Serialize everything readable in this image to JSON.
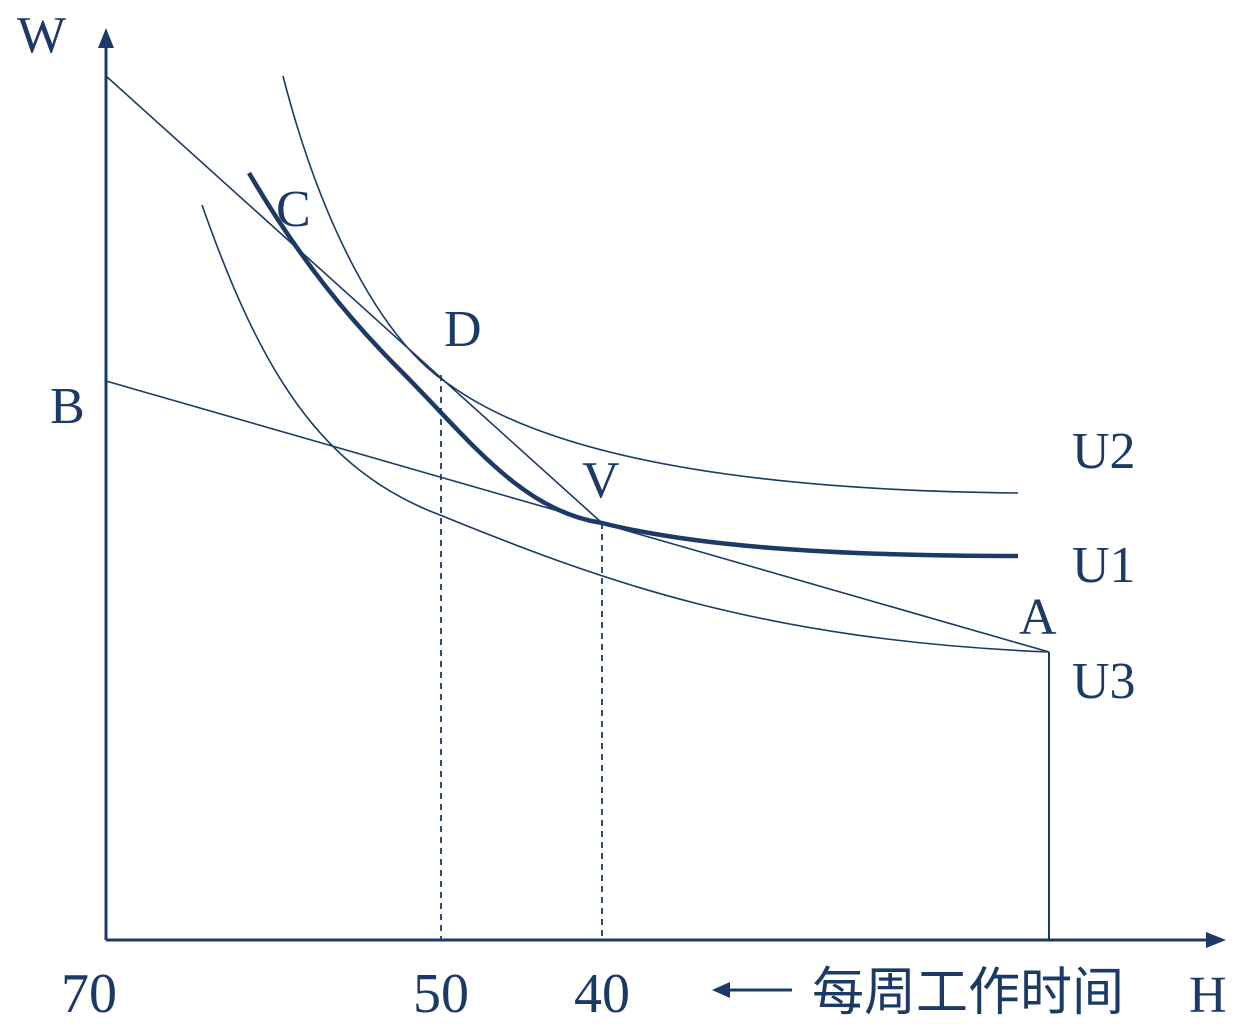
{
  "diagram": {
    "y_axis_label": "W",
    "x_axis_label": "H",
    "x_caption": "每周工作时间",
    "x_ticks": [
      "70",
      "50",
      "40"
    ],
    "points": {
      "A": "A",
      "B": "B",
      "C": "C",
      "D": "D",
      "V": "V"
    },
    "curves": {
      "U1": "U1",
      "U2": "U2",
      "U3": "U3"
    },
    "color": "#1b3a66"
  }
}
